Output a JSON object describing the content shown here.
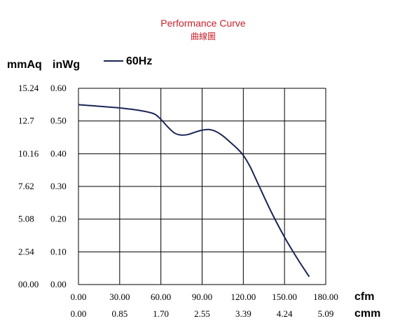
{
  "colors": {
    "title": "#c8202c",
    "curve": "#1c2555",
    "grid": "#000000"
  },
  "chart_data": {
    "type": "line",
    "title": "Performance Curve",
    "subtitle": "曲線圖",
    "y_unit_left": "mmAq",
    "y_unit_right": "inWg",
    "x_unit_primary": "cfm",
    "x_unit_secondary": "cmm",
    "xlim": [
      0,
      180
    ],
    "ylim": [
      0,
      0.6
    ],
    "x_ticks": [
      "0.00",
      "30.00",
      "60.00",
      "90.00",
      "120.00",
      "150.00",
      "180.00"
    ],
    "x_ticks_secondary": [
      "0.00",
      "0.85",
      "1.70",
      "2.55",
      "3.39",
      "4.24",
      "5.09"
    ],
    "y_ticks_inwg": [
      "0.00",
      "0.10",
      "0.20",
      "0.30",
      "0.40",
      "0.50",
      "0.60"
    ],
    "y_ticks_mmaq": [
      "00.00",
      "2.54",
      "5.08",
      "7.62",
      "10.16",
      "12.7",
      "15.24"
    ],
    "grid": true,
    "legend_position": "top-left",
    "series": [
      {
        "name": "60Hz",
        "x": [
          0,
          15,
          30,
          45,
          55,
          60,
          65,
          70,
          75,
          80,
          85,
          90,
          95,
          100,
          105,
          110,
          115,
          120,
          125,
          130,
          140,
          150,
          160,
          168
        ],
        "y": [
          0.55,
          0.545,
          0.54,
          0.532,
          0.522,
          0.505,
          0.482,
          0.463,
          0.457,
          0.459,
          0.466,
          0.472,
          0.474,
          0.468,
          0.455,
          0.437,
          0.418,
          0.395,
          0.36,
          0.315,
          0.225,
          0.145,
          0.075,
          0.024
        ]
      }
    ]
  }
}
